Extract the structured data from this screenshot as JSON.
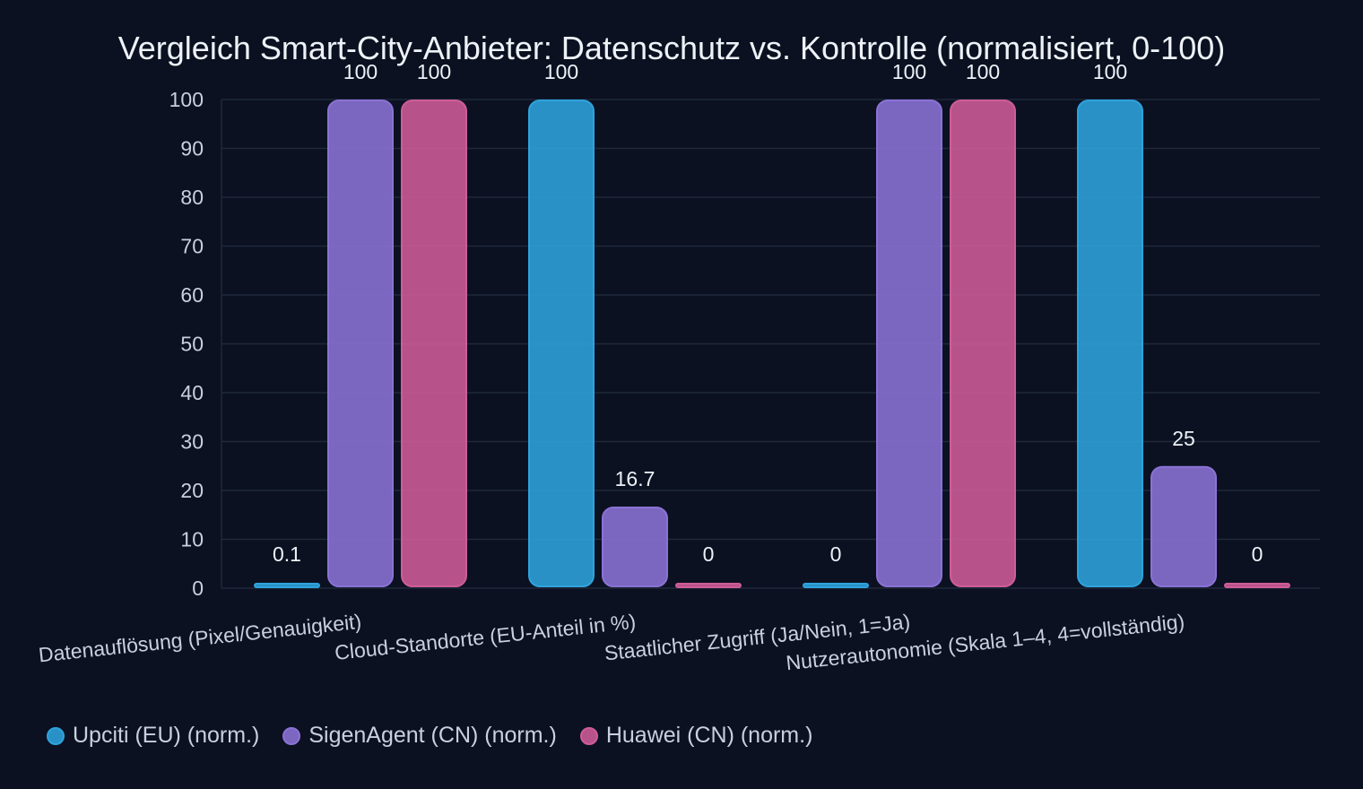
{
  "chart_data": {
    "type": "bar",
    "title": "Vergleich Smart-City-Anbieter: Datenschutz vs. Kontrolle (normalisiert, 0-100)",
    "xlabel": "",
    "ylabel": "",
    "ylim": [
      0,
      100
    ],
    "yticks": [
      0,
      10,
      20,
      30,
      40,
      50,
      60,
      70,
      80,
      90,
      100
    ],
    "grid": true,
    "legend_position": "bottom-left",
    "categories": [
      "Datenauflösung (Pixel/Genauigkeit)",
      "Cloud-Standorte (EU-Anteil in %)",
      "Staatlicher Zugriff (Ja/Nein, 1=Ja)",
      "Nutzerautonomie (Skala 1–4, 4=vollständig)"
    ],
    "series": [
      {
        "name": "Upciti (EU) (norm.)",
        "color": "#2ea3dd",
        "values": [
          0.1,
          100,
          0,
          100
        ],
        "labels": [
          "0.1",
          "100",
          "0",
          "100"
        ]
      },
      {
        "name": "SigenAgent (CN) (norm.)",
        "color": "#8b72d6",
        "values": [
          100,
          16.7,
          100,
          25
        ],
        "labels": [
          "100",
          "16.7",
          "100",
          "25"
        ]
      },
      {
        "name": "Huawei (CN) (norm.)",
        "color": "#cf5c98",
        "values": [
          100,
          0,
          100,
          0
        ],
        "labels": [
          "100",
          "0",
          "100",
          "0"
        ]
      }
    ]
  }
}
